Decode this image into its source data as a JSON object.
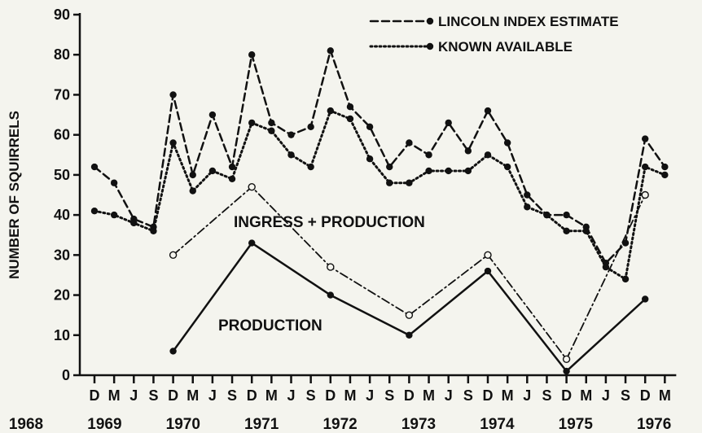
{
  "chart_data": {
    "type": "line",
    "ylabel": "NUMBER OF SQUIRRELS",
    "ylim": [
      0,
      90
    ],
    "yticks": [
      0,
      10,
      20,
      30,
      40,
      50,
      60,
      70,
      80,
      90
    ],
    "x_tick_labels": [
      "D",
      "M",
      "J",
      "S",
      "D",
      "M",
      "J",
      "S",
      "D",
      "M",
      "J",
      "S",
      "D",
      "M",
      "J",
      "S",
      "D",
      "M",
      "J",
      "S",
      "D",
      "M",
      "J",
      "S",
      "D",
      "M",
      "J",
      "S",
      "D",
      "M"
    ],
    "x_years": [
      "1968",
      "1969",
      "1970",
      "1971",
      "1972",
      "1973",
      "1974",
      "1975",
      "1976"
    ],
    "series": [
      {
        "name": "LINCOLN INDEX ESTIMATE",
        "style": "dashed",
        "points": [
          [
            0,
            52
          ],
          [
            1,
            48
          ],
          [
            2,
            39
          ],
          [
            3,
            37
          ],
          [
            4,
            70
          ],
          [
            5,
            50
          ],
          [
            6,
            65
          ],
          [
            7,
            52
          ],
          [
            8,
            80
          ],
          [
            9,
            63
          ],
          [
            10,
            60
          ],
          [
            11,
            62
          ],
          [
            12,
            81
          ],
          [
            13,
            67
          ],
          [
            14,
            62
          ],
          [
            15,
            52
          ],
          [
            16,
            58
          ],
          [
            17,
            55
          ],
          [
            18,
            63
          ],
          [
            19,
            56
          ],
          [
            20,
            66
          ],
          [
            21,
            58
          ],
          [
            22,
            45
          ],
          [
            23,
            40
          ],
          [
            24,
            40
          ],
          [
            25,
            37
          ],
          [
            26,
            28
          ],
          [
            27,
            33
          ],
          [
            28,
            59
          ],
          [
            29,
            52
          ]
        ]
      },
      {
        "name": "KNOWN AVAILABLE",
        "style": "dotted",
        "points": [
          [
            0,
            41
          ],
          [
            1,
            40
          ],
          [
            2,
            38
          ],
          [
            3,
            36
          ],
          [
            4,
            58
          ],
          [
            5,
            46
          ],
          [
            6,
            51
          ],
          [
            7,
            49
          ],
          [
            8,
            63
          ],
          [
            9,
            61
          ],
          [
            10,
            55
          ],
          [
            11,
            52
          ],
          [
            12,
            66
          ],
          [
            13,
            64
          ],
          [
            14,
            54
          ],
          [
            15,
            48
          ],
          [
            16,
            48
          ],
          [
            17,
            51
          ],
          [
            18,
            51
          ],
          [
            19,
            51
          ],
          [
            20,
            55
          ],
          [
            21,
            52
          ],
          [
            22,
            42
          ],
          [
            23,
            40
          ],
          [
            24,
            36
          ],
          [
            25,
            36
          ],
          [
            26,
            27
          ],
          [
            27,
            24
          ],
          [
            28,
            52
          ],
          [
            29,
            50
          ]
        ]
      },
      {
        "name": "INGRESS + PRODUCTION",
        "style": "dashdot",
        "marker": "open",
        "points": [
          [
            4,
            30
          ],
          [
            8,
            47
          ],
          [
            12,
            27
          ],
          [
            16,
            15
          ],
          [
            20,
            30
          ],
          [
            24,
            4
          ],
          [
            28,
            45
          ]
        ]
      },
      {
        "name": "PRODUCTION",
        "style": "solid",
        "marker": "filled",
        "points": [
          [
            4,
            6
          ],
          [
            8,
            33
          ],
          [
            12,
            20
          ],
          [
            16,
            10
          ],
          [
            20,
            26
          ],
          [
            24,
            1
          ],
          [
            28,
            19
          ]
        ]
      }
    ],
    "legend": {
      "placement": "top-right",
      "entries": [
        {
          "label": "LINCOLN INDEX ESTIMATE",
          "style": "dashed"
        },
        {
          "label": "KNOWN AVAILABLE",
          "style": "dotted"
        }
      ]
    },
    "annotations": [
      {
        "text": "INGRESS + PRODUCTION",
        "series": "INGRESS + PRODUCTION"
      },
      {
        "text": "PRODUCTION",
        "series": "PRODUCTION"
      }
    ],
    "grid": false,
    "colors": {
      "ink": "#111111",
      "background": "#f4f4ee"
    }
  }
}
